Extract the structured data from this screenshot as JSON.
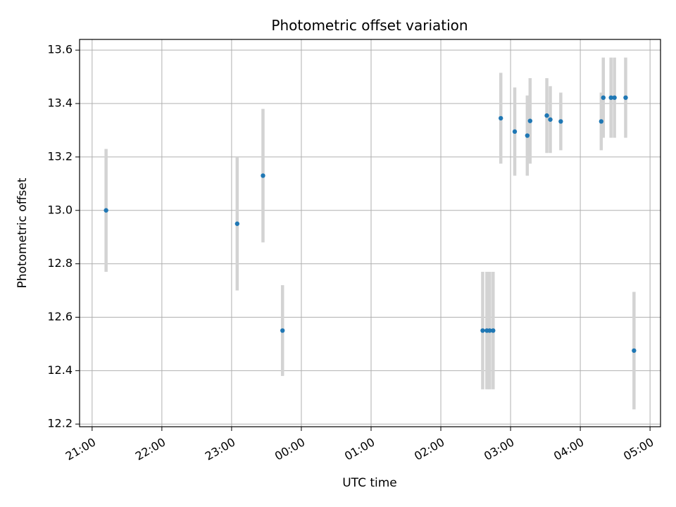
{
  "chart_data": {
    "type": "scatter",
    "title": "Photometric offset variation",
    "xlabel": "UTC time",
    "ylabel": "Photometric offset",
    "x_ticks": [
      "21:00",
      "22:00",
      "23:00",
      "00:00",
      "01:00",
      "02:00",
      "03:00",
      "04:00",
      "05:00"
    ],
    "x_tick_hours": [
      21,
      22,
      23,
      24,
      25,
      26,
      27,
      28,
      29
    ],
    "xlim_hours": [
      20.82,
      29.15
    ],
    "y_ticks": [
      "12.2",
      "12.4",
      "12.6",
      "12.8",
      "13.0",
      "13.2",
      "13.4",
      "13.6"
    ],
    "y_tick_values": [
      12.2,
      12.4,
      12.6,
      12.8,
      13.0,
      13.2,
      13.4,
      13.6
    ],
    "ylim": [
      12.19,
      13.64
    ],
    "grid": true,
    "colors": {
      "point": "#1f77b4",
      "errorbar": "#d3d3d3",
      "grid": "#b0b0b0"
    },
    "points": [
      {
        "t": "21:12",
        "hours": 21.2,
        "y": 13.0,
        "yerr": 0.23
      },
      {
        "t": "23:05",
        "hours": 23.08,
        "y": 12.95,
        "yerr": 0.25
      },
      {
        "t": "23:27",
        "hours": 23.45,
        "y": 13.13,
        "yerr": 0.25
      },
      {
        "t": "23:44",
        "hours": 23.73,
        "y": 12.55,
        "yerr": 0.17
      },
      {
        "t": "02:36",
        "hours": 26.6,
        "y": 12.55,
        "yerr": 0.22
      },
      {
        "t": "02:40",
        "hours": 26.66,
        "y": 12.55,
        "yerr": 0.22
      },
      {
        "t": "02:42",
        "hours": 26.7,
        "y": 12.55,
        "yerr": 0.22
      },
      {
        "t": "02:45",
        "hours": 26.75,
        "y": 12.55,
        "yerr": 0.22
      },
      {
        "t": "02:51",
        "hours": 26.86,
        "y": 13.345,
        "yerr": 0.17
      },
      {
        "t": "03:04",
        "hours": 27.06,
        "y": 13.295,
        "yerr": 0.165
      },
      {
        "t": "03:14",
        "hours": 27.24,
        "y": 13.28,
        "yerr": 0.15
      },
      {
        "t": "03:17",
        "hours": 27.28,
        "y": 13.335,
        "yerr": 0.16
      },
      {
        "t": "03:31",
        "hours": 27.52,
        "y": 13.355,
        "yerr": 0.14
      },
      {
        "t": "03:34",
        "hours": 27.57,
        "y": 13.34,
        "yerr": 0.125
      },
      {
        "t": "03:43",
        "hours": 27.72,
        "y": 13.333,
        "yerr": 0.108
      },
      {
        "t": "04:18",
        "hours": 28.3,
        "y": 13.333,
        "yerr": 0.108
      },
      {
        "t": "04:20",
        "hours": 28.33,
        "y": 13.422,
        "yerr": 0.15
      },
      {
        "t": "04:26",
        "hours": 28.44,
        "y": 13.422,
        "yerr": 0.15
      },
      {
        "t": "04:29",
        "hours": 28.49,
        "y": 13.422,
        "yerr": 0.15
      },
      {
        "t": "04:39",
        "hours": 28.65,
        "y": 13.422,
        "yerr": 0.15
      },
      {
        "t": "04:46",
        "hours": 28.77,
        "y": 12.475,
        "yerr": 0.22
      }
    ]
  }
}
